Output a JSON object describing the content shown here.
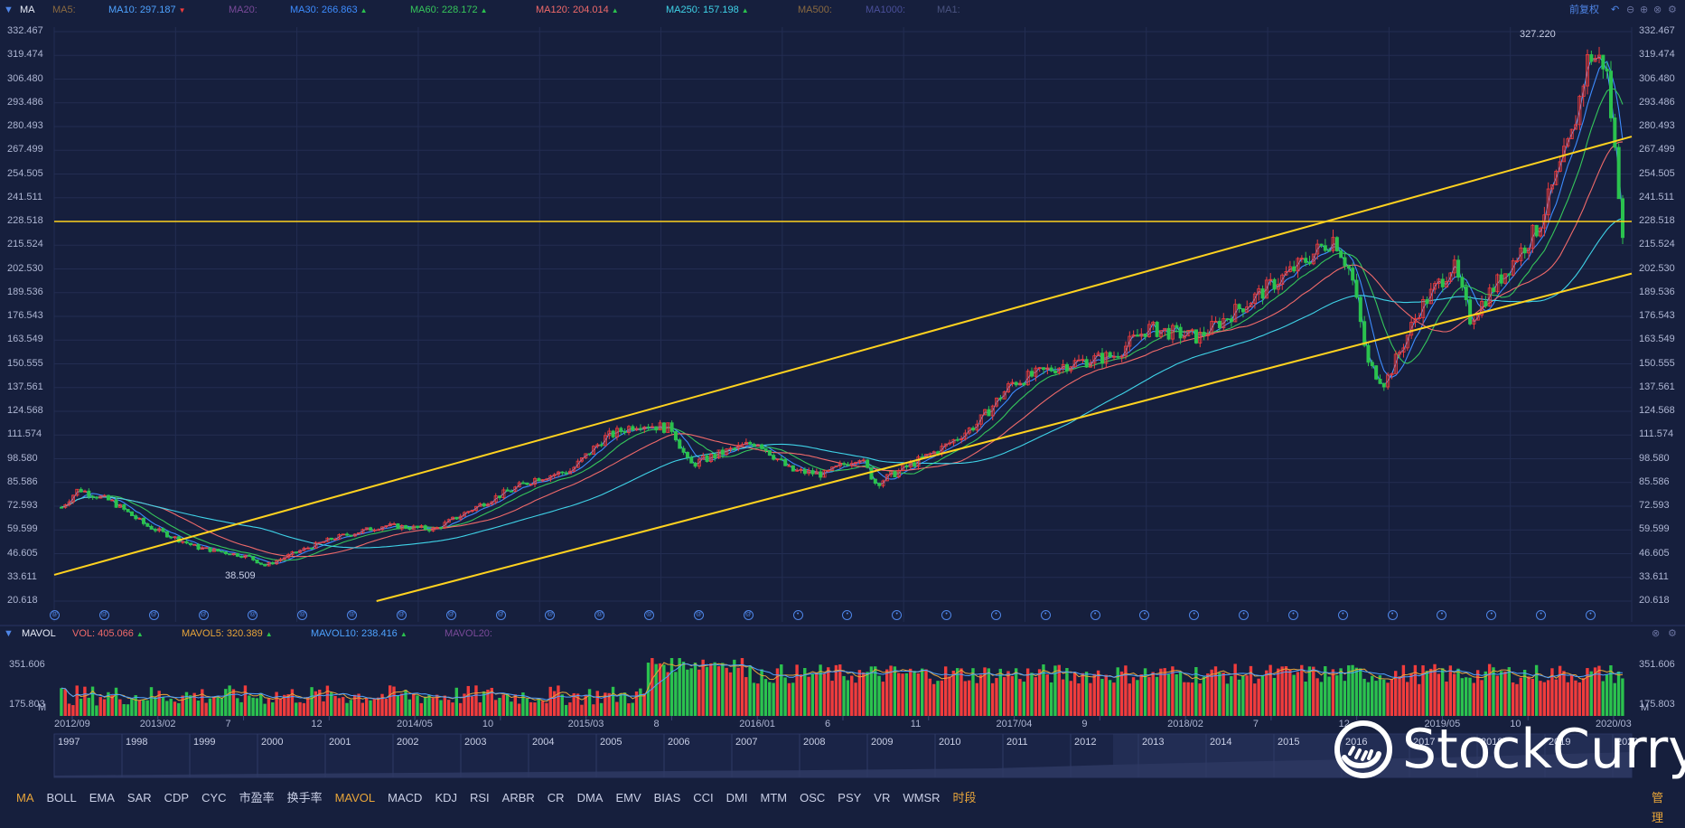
{
  "price_header": {
    "label": "MA",
    "items": [
      {
        "name": "MA5:",
        "value": "",
        "color": "#8a6a40",
        "dir": ""
      },
      {
        "name": "MA10:",
        "value": "297.187",
        "color": "#4ea2ff",
        "dir": "down"
      },
      {
        "name": "MA20:",
        "value": "",
        "color": "#7a4a9a",
        "dir": ""
      },
      {
        "name": "MA30:",
        "value": "266.863",
        "color": "#3d8cff",
        "dir": "up"
      },
      {
        "name": "MA60:",
        "value": "228.172",
        "color": "#35c65b",
        "dir": "up"
      },
      {
        "name": "MA120:",
        "value": "204.014",
        "color": "#f06a6a",
        "dir": "up"
      },
      {
        "name": "MA250:",
        "value": "157.198",
        "color": "#3fd3e8",
        "dir": "up"
      },
      {
        "name": "MA500:",
        "value": "",
        "color": "#8a6a40",
        "dir": ""
      },
      {
        "name": "MA1000:",
        "value": "",
        "color": "#4a4f9a",
        "dir": ""
      },
      {
        "name": "MA1:",
        "value": "",
        "color": "#4a5380",
        "dir": ""
      }
    ],
    "adjust_label": "前复权"
  },
  "volume_header": {
    "label": "MAVOL",
    "items": [
      {
        "name": "VOL:",
        "value": "405.066",
        "color": "#f06a6a",
        "dir": "up"
      },
      {
        "name": "MAVOL5:",
        "value": "320.389",
        "color": "#e8a53a",
        "dir": "up"
      },
      {
        "name": "MAVOL10:",
        "value": "238.416",
        "color": "#4ea2ff",
        "dir": "up"
      },
      {
        "name": "MAVOL20:",
        "value": "",
        "color": "#7a4a9a",
        "dir": ""
      }
    ]
  },
  "colors": {
    "background": "#161f3d",
    "up": "#f03c3c",
    "down": "#2bc24e",
    "trendline": "#ffd21f",
    "grid": "#232d52"
  },
  "price_axis_ticks": [
    "332.467",
    "319.474",
    "306.480",
    "293.486",
    "280.493",
    "267.499",
    "254.505",
    "241.511",
    "228.518",
    "215.524",
    "202.530",
    "189.536",
    "176.543",
    "163.549",
    "150.555",
    "137.561",
    "124.568",
    "111.574",
    "98.580",
    "85.586",
    "72.593",
    "59.599",
    "46.605",
    "33.611",
    "20.618"
  ],
  "volume_axis_ticks": [
    "351.606",
    "175.803"
  ],
  "volume_unit": "M",
  "annotations": {
    "high": "327.220",
    "low": "38.509"
  },
  "time_labels": [
    "2012/09",
    "2013/02",
    "7",
    "12",
    "2014/05",
    "10",
    "2015/03",
    "8",
    "2016/01",
    "6",
    "11",
    "2017/04",
    "9",
    "2018/02",
    "7",
    "12",
    "2019/05",
    "10",
    "2020/03"
  ],
  "overview_years": [
    "1997",
    "1998",
    "1999",
    "2000",
    "2001",
    "2002",
    "2003",
    "2004",
    "2005",
    "2006",
    "2007",
    "2008",
    "2009",
    "2010",
    "2011",
    "2012",
    "2013",
    "2014",
    "2015",
    "2016",
    "2017",
    "2018",
    "2019",
    "2020"
  ],
  "indicators": [
    {
      "label": "MA",
      "active": true
    },
    {
      "label": "BOLL"
    },
    {
      "label": "EMA"
    },
    {
      "label": "SAR"
    },
    {
      "label": "CDP"
    },
    {
      "label": "CYC"
    },
    {
      "label": "市盈率"
    },
    {
      "label": "换手率"
    },
    {
      "label": "MAVOL",
      "active": true
    },
    {
      "label": "MACD"
    },
    {
      "label": "KDJ"
    },
    {
      "label": "RSI"
    },
    {
      "label": "ARBR"
    },
    {
      "label": "CR"
    },
    {
      "label": "DMA"
    },
    {
      "label": "EMV"
    },
    {
      "label": "BIAS"
    },
    {
      "label": "CCI"
    },
    {
      "label": "DMI"
    },
    {
      "label": "MTM"
    },
    {
      "label": "OSC"
    },
    {
      "label": "PSY"
    },
    {
      "label": "VR"
    },
    {
      "label": "WMSR"
    },
    {
      "label": "时段",
      "active": true
    }
  ],
  "manage_label": "管理",
  "watermark": "StockCurry",
  "chart_data": {
    "type": "candlestick",
    "y_range": [
      20.618,
      332.467
    ],
    "x_range": [
      "2012/06",
      "2020/03"
    ],
    "price_path": [
      {
        "x": "2012/07",
        "y": 72
      },
      {
        "x": "2012/08",
        "y": 82
      },
      {
        "x": "2012/10",
        "y": 75
      },
      {
        "x": "2012/12",
        "y": 62
      },
      {
        "x": "2013/03",
        "y": 50
      },
      {
        "x": "2013/06",
        "y": 45
      },
      {
        "x": "2013/07",
        "y": 40
      },
      {
        "x": "2013/09",
        "y": 48
      },
      {
        "x": "2013/11",
        "y": 55
      },
      {
        "x": "2014/02",
        "y": 62
      },
      {
        "x": "2014/05",
        "y": 60
      },
      {
        "x": "2014/08",
        "y": 75
      },
      {
        "x": "2014/11",
        "y": 88
      },
      {
        "x": "2015/01",
        "y": 92
      },
      {
        "x": "2015/03",
        "y": 110
      },
      {
        "x": "2015/05",
        "y": 118
      },
      {
        "x": "2015/07",
        "y": 115
      },
      {
        "x": "2015/08",
        "y": 95
      },
      {
        "x": "2015/10",
        "y": 102
      },
      {
        "x": "2015/12",
        "y": 108
      },
      {
        "x": "2016/02",
        "y": 92
      },
      {
        "x": "2016/04",
        "y": 90
      },
      {
        "x": "2016/06",
        "y": 100
      },
      {
        "x": "2016/07",
        "y": 85
      },
      {
        "x": "2016/09",
        "y": 95
      },
      {
        "x": "2016/11",
        "y": 105
      },
      {
        "x": "2017/01",
        "y": 118
      },
      {
        "x": "2017/03",
        "y": 140
      },
      {
        "x": "2017/06",
        "y": 150
      },
      {
        "x": "2017/09",
        "y": 155
      },
      {
        "x": "2017/11",
        "y": 170
      },
      {
        "x": "2018/02",
        "y": 165
      },
      {
        "x": "2018/05",
        "y": 185
      },
      {
        "x": "2018/08",
        "y": 205
      },
      {
        "x": "2018/10",
        "y": 220
      },
      {
        "x": "2018/11",
        "y": 200
      },
      {
        "x": "2018/12",
        "y": 150
      },
      {
        "x": "2019/01",
        "y": 140
      },
      {
        "x": "2019/03",
        "y": 180
      },
      {
        "x": "2019/05",
        "y": 205
      },
      {
        "x": "2019/06",
        "y": 175
      },
      {
        "x": "2019/08",
        "y": 200
      },
      {
        "x": "2019/10",
        "y": 225
      },
      {
        "x": "2019/12",
        "y": 275
      },
      {
        "x": "2020/01",
        "y": 320
      },
      {
        "x": "2020/02",
        "y": 315
      },
      {
        "x": "2020/03",
        "y": 225
      }
    ],
    "ma_series": [
      {
        "name": "MA10",
        "color": "#4ea2ff"
      },
      {
        "name": "MA30",
        "color": "#3d8cff"
      },
      {
        "name": "MA60",
        "color": "#35c65b"
      },
      {
        "name": "MA120",
        "color": "#f06a6a"
      },
      {
        "name": "MA250",
        "color": "#3fd3e8"
      }
    ],
    "horizontal_line": 228.518,
    "trend_lines": [
      {
        "from": {
          "x": "2012/06",
          "y": 35
        },
        "to": {
          "x": "2020/03",
          "y": 275
        }
      },
      {
        "from": {
          "x": "2014/01",
          "y": 20.618
        },
        "to": {
          "x": "2020/03",
          "y": 200
        }
      }
    ]
  }
}
